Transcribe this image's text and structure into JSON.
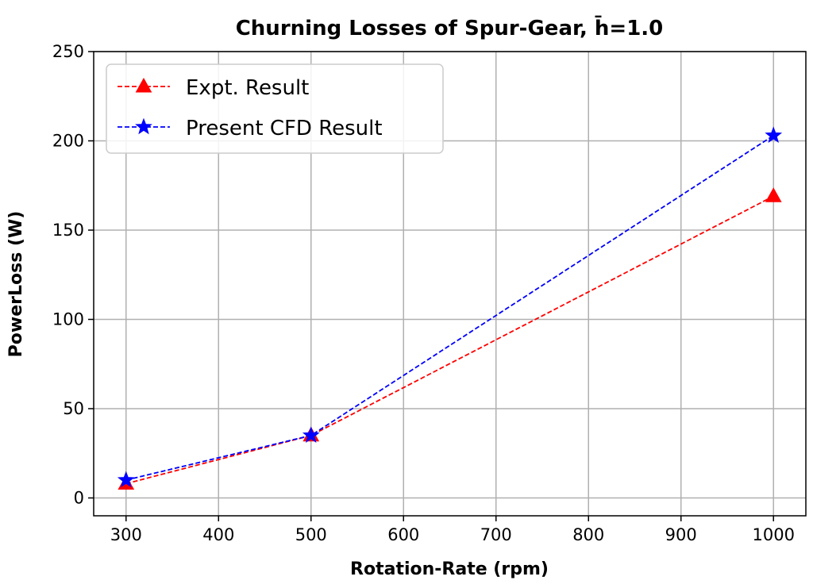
{
  "chart_data": {
    "type": "line",
    "title": "Churning Losses of Spur-Gear, h̄=1.0",
    "xlabel": "Rotation-Rate (rpm)",
    "ylabel": "PowerLoss (W)",
    "xlim": [
      265,
      1035
    ],
    "ylim": [
      -10,
      250
    ],
    "xticks": [
      300,
      400,
      500,
      600,
      700,
      800,
      900,
      1000
    ],
    "yticks": [
      0,
      50,
      100,
      150,
      200,
      250
    ],
    "grid": true,
    "legend_position": "top-left",
    "series": [
      {
        "name": "Expt. Result",
        "color": "#ff0000",
        "marker": "triangle",
        "linestyle": "dashed",
        "x": [
          300,
          500,
          1000
        ],
        "y": [
          8,
          35,
          169
        ]
      },
      {
        "name": "Present CFD Result",
        "color": "#0000ff",
        "marker": "star",
        "linestyle": "dashed",
        "x": [
          300,
          500,
          1000
        ],
        "y": [
          10,
          35,
          203
        ]
      }
    ]
  }
}
